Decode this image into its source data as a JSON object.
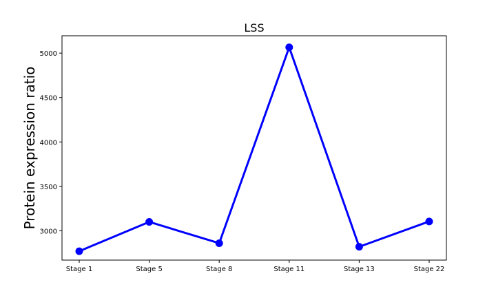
{
  "chart_data": {
    "type": "line",
    "title": "LSS",
    "xlabel": "",
    "ylabel": "Protein expression ratio",
    "categories": [
      "Stage 1",
      "Stage 5",
      "Stage 8",
      "Stage 11",
      "Stage 13",
      "Stage 22"
    ],
    "series": [
      {
        "values": [
          2770,
          3100,
          2860,
          5065,
          2820,
          3105
        ],
        "color": "#0000ff"
      }
    ],
    "ylim": [
      2670,
      5195
    ],
    "yticks": [
      3000,
      3500,
      4000,
      4500,
      5000
    ],
    "grid": false,
    "legend": "none",
    "marker": "circle"
  }
}
